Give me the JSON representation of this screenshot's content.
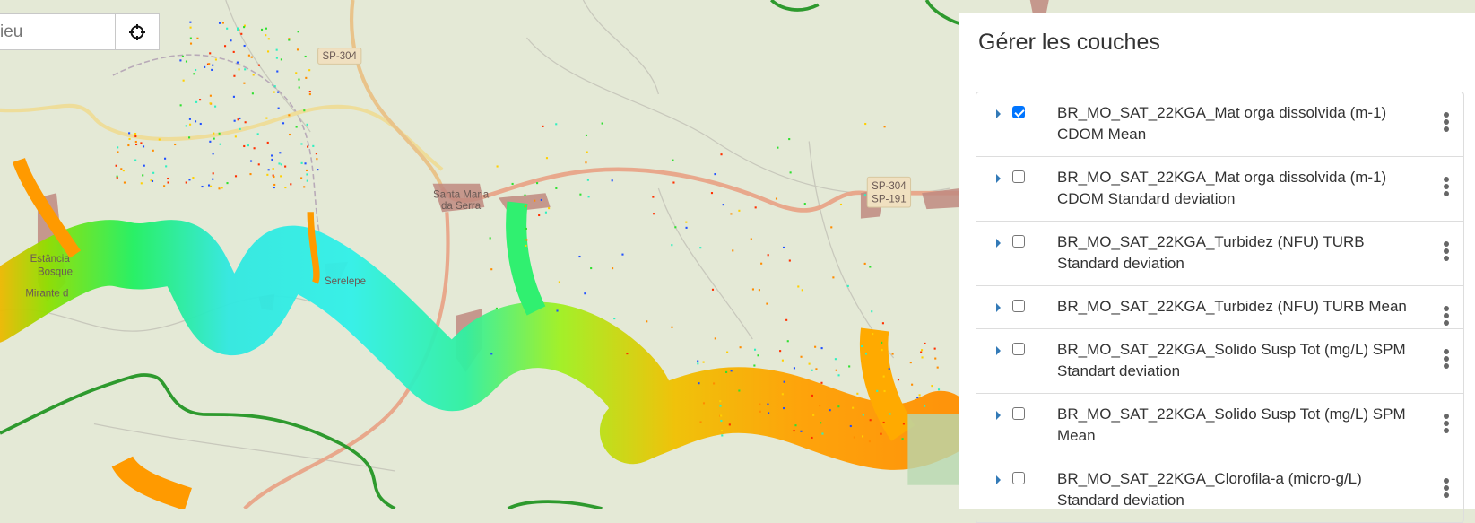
{
  "map": {
    "labels": {
      "sp304_top": "SP-304",
      "santa_maria_1": "Santa Maria",
      "santa_maria_2": "da Serra",
      "estancia_1": "Estância",
      "estancia_2": "Bosque",
      "mirante": "Mirante d",
      "serelepe": "Serelepe",
      "sp304_right": "SP-304",
      "sp191_right": "SP-191"
    },
    "colors": {
      "background": "#e4e9d6",
      "boundary": "#2e9a2e",
      "road_major": "#e8a88c",
      "road_secondary": "#eedd9a",
      "urban": "#c08a80"
    }
  },
  "search": {
    "value": "ieu",
    "locate_icon": "crosshair-icon"
  },
  "panel": {
    "title": "Gérer les couches",
    "layers": [
      {
        "line1": "BR_MO_SAT_22KGA_Mat orga dissolvida (m-1)",
        "line2": "CDOM Mean",
        "checked": true
      },
      {
        "line1": "BR_MO_SAT_22KGA_Mat orga dissolvida (m-1)",
        "line2": "CDOM Standard deviation",
        "checked": false
      },
      {
        "line1": "BR_MO_SAT_22KGA_Turbidez (NFU) TURB",
        "line2": "Standard deviation",
        "checked": false
      },
      {
        "line1": "BR_MO_SAT_22KGA_Turbidez (NFU) TURB Mean",
        "line2": "",
        "checked": false
      },
      {
        "line1": "BR_MO_SAT_22KGA_Solido Susp Tot (mg/L) SPM",
        "line2": "Standart deviation",
        "checked": false
      },
      {
        "line1": "BR_MO_SAT_22KGA_Solido Susp Tot (mg/L) SPM",
        "line2": "Mean",
        "checked": false
      },
      {
        "line1": "BR_MO_SAT_22KGA_Clorofila-a (micro-g/L)",
        "line2": "Standard deviation",
        "checked": false
      }
    ]
  }
}
